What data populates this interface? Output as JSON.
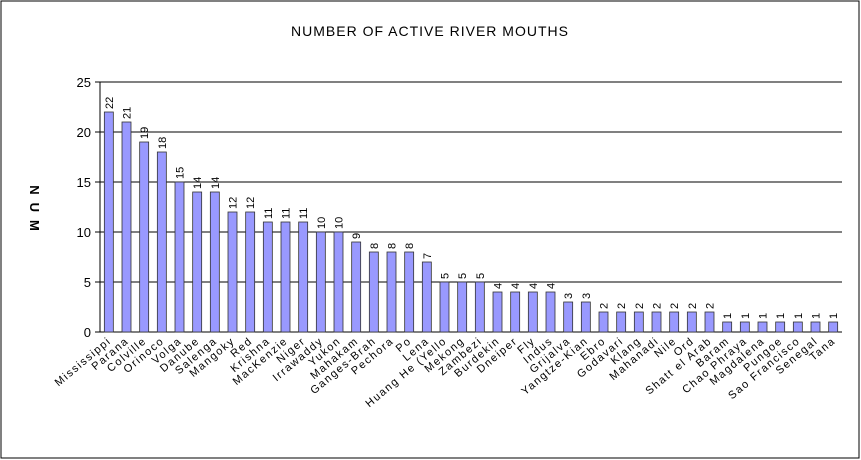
{
  "chart_data": {
    "type": "bar",
    "title": "NUMBER OF ACTIVE RIVER MOUTHS",
    "ylabel": "NUM",
    "categories": [
      "Mississippi",
      "Parana",
      "Colville",
      "Orinoco",
      "Volga",
      "Danube",
      "Salenga",
      "Mangoky",
      "Red",
      "Krishna",
      "MacKenzie",
      "Niger",
      "Irrawaddy",
      "Yukon",
      "Mahakam",
      "Ganges-Brah",
      "Pechora",
      "Po",
      "Lena",
      "Huang He (Yello",
      "Mekong",
      "Zambezi",
      "Burdekin",
      "Dneiper",
      "Fly",
      "Indus",
      "Grijalva",
      "Yangtze-Kian",
      "Ebro",
      "Godavari",
      "Klang",
      "Mahanadi",
      "Nile",
      "Ord",
      "Shatt el Arab",
      "Baram",
      "Chao Phraya",
      "Magdalena",
      "Pungoe",
      "Sao Francisco",
      "Senegal",
      "Tana"
    ],
    "values": [
      22,
      21,
      19,
      18,
      15,
      14,
      14,
      12,
      12,
      11,
      11,
      11,
      10,
      10,
      9,
      8,
      8,
      8,
      7,
      5,
      5,
      5,
      4,
      4,
      4,
      4,
      3,
      3,
      2,
      2,
      2,
      2,
      2,
      2,
      2,
      1,
      1,
      1,
      1,
      1,
      1,
      1
    ],
    "color": "#9999ff",
    "ylim": [
      0,
      25
    ],
    "yticks": [
      0,
      5,
      10,
      15,
      20,
      25
    ],
    "grid": true
  }
}
